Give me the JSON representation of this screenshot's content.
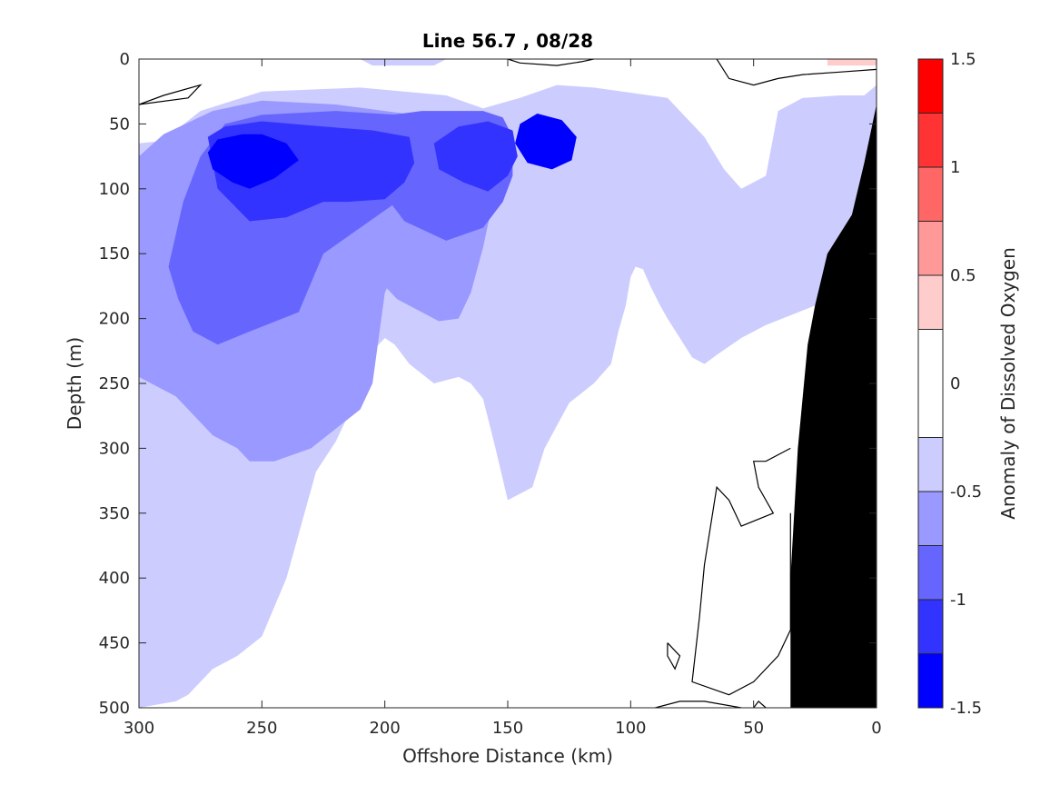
{
  "chart_data": {
    "type": "heatmap",
    "subtype": "filled-contour",
    "title": "Line 56.7 , 08/28",
    "xlabel": "Offshore Distance (km)",
    "ylabel": "Depth (m)",
    "xlim": [
      300,
      0
    ],
    "ylim": [
      0,
      500
    ],
    "x_reversed": true,
    "y_reversed": true,
    "x_ticks": [
      300,
      250,
      200,
      150,
      100,
      50,
      0
    ],
    "x_tick_labels": [
      "300",
      "250",
      "200",
      "150",
      "100",
      "50",
      "0"
    ],
    "y_ticks": [
      0,
      50,
      100,
      150,
      200,
      250,
      300,
      350,
      400,
      450,
      500
    ],
    "y_tick_labels": [
      "0",
      "50",
      "100",
      "150",
      "200",
      "250",
      "300",
      "350",
      "400",
      "450",
      "500"
    ],
    "colorbar": {
      "label": "Anomaly of Dissolved Oxygen",
      "range": [
        -1.5,
        1.5
      ],
      "ticks": [
        -1.5,
        -1,
        -0.5,
        0,
        0.5,
        1,
        1.5
      ],
      "tick_labels": [
        "-1.5",
        "-1",
        "-0.5",
        "0",
        "0.5",
        "1",
        "1.5"
      ],
      "levels": [
        -1.5,
        -1.25,
        -1.0,
        -0.75,
        -0.5,
        -0.25,
        0.25,
        0.5,
        0.75,
        1.0,
        1.25,
        1.5
      ],
      "level_colors": [
        "#0000ff",
        "#3333ff",
        "#6666ff",
        "#9999ff",
        "#ccccff",
        "#ffffff",
        "#ffcccc",
        "#ff9999",
        "#ff6666",
        "#ff3333",
        "#ff0000"
      ]
    },
    "regions": [
      {
        "name": "anomaly-below-minus-0.25",
        "level": -0.5,
        "color": "#ccccff",
        "polygons": [
          [
            [
              300,
              0
            ],
            [
              210,
              0
            ],
            [
              205,
              5
            ],
            [
              180,
              5
            ],
            [
              175,
              0
            ],
            [
              300,
              0
            ]
          ],
          [
            [
              300,
              65
            ],
            [
              290,
              63
            ],
            [
              285,
              55
            ],
            [
              275,
              40
            ],
            [
              250,
              25
            ],
            [
              210,
              22
            ],
            [
              175,
              28
            ],
            [
              160,
              38
            ],
            [
              145,
              30
            ],
            [
              130,
              20
            ],
            [
              115,
              22
            ],
            [
              85,
              30
            ],
            [
              70,
              60
            ],
            [
              62,
              85
            ],
            [
              55,
              100
            ],
            [
              45,
              90
            ],
            [
              42,
              60
            ],
            [
              40,
              40
            ],
            [
              30,
              30
            ],
            [
              15,
              28
            ],
            [
              5,
              28
            ],
            [
              0,
              20
            ],
            [
              0,
              190
            ],
            [
              25,
              190
            ],
            [
              45,
              205
            ],
            [
              55,
              215
            ],
            [
              65,
              228
            ],
            [
              70,
              235
            ],
            [
              75,
              230
            ],
            [
              80,
              215
            ],
            [
              85,
              200
            ],
            [
              88,
              190
            ],
            [
              92,
              175
            ],
            [
              95,
              162
            ],
            [
              98,
              160
            ],
            [
              100,
              168
            ],
            [
              102,
              190
            ],
            [
              105,
              210
            ],
            [
              108,
              235
            ],
            [
              115,
              250
            ],
            [
              125,
              265
            ],
            [
              135,
              300
            ],
            [
              140,
              330
            ],
            [
              150,
              340
            ],
            [
              155,
              300
            ],
            [
              160,
              262
            ],
            [
              165,
              250
            ],
            [
              170,
              245
            ],
            [
              180,
              250
            ],
            [
              190,
              235
            ],
            [
              196,
              220
            ],
            [
              200,
              215
            ],
            [
              205,
              225
            ],
            [
              210,
              250
            ],
            [
              215,
              275
            ],
            [
              220,
              295
            ],
            [
              228,
              318
            ],
            [
              240,
              400
            ],
            [
              250,
              445
            ],
            [
              260,
              460
            ],
            [
              270,
              470
            ],
            [
              275,
              480
            ],
            [
              280,
              490
            ],
            [
              285,
              495
            ],
            [
              300,
              500
            ],
            [
              300,
              65
            ]
          ]
        ]
      },
      {
        "name": "anomaly-below-minus-0.5",
        "level": -0.75,
        "color": "#9999ff",
        "polygons": [
          [
            [
              300,
              245
            ],
            [
              300,
              75
            ],
            [
              290,
              58
            ],
            [
              270,
              40
            ],
            [
              250,
              32
            ],
            [
              220,
              35
            ],
            [
              180,
              45
            ],
            [
              175,
              60
            ],
            [
              180,
              100
            ],
            [
              200,
              180
            ],
            [
              205,
              250
            ],
            [
              210,
              270
            ],
            [
              230,
              300
            ],
            [
              245,
              310
            ],
            [
              255,
              310
            ],
            [
              260,
              300
            ],
            [
              270,
              290
            ],
            [
              285,
              260
            ],
            [
              300,
              245
            ]
          ],
          [
            [
              155,
              60
            ],
            [
              155,
              100
            ],
            [
              160,
              145
            ],
            [
              165,
              180
            ],
            [
              170,
              200
            ],
            [
              178,
              202
            ],
            [
              195,
              185
            ],
            [
              205,
              165
            ],
            [
              218,
              135
            ],
            [
              220,
              115
            ],
            [
              222,
              110
            ],
            [
              205,
              115
            ],
            [
              195,
              110
            ],
            [
              185,
              90
            ],
            [
              178,
              75
            ],
            [
              170,
              45
            ],
            [
              160,
              40
            ],
            [
              155,
              60
            ]
          ]
        ]
      },
      {
        "name": "anomaly-below-minus-0.75",
        "level": -1.0,
        "color": "#6666ff",
        "polygons": [
          [
            [
              288,
              160
            ],
            [
              282,
              110
            ],
            [
              275,
              75
            ],
            [
              265,
              50
            ],
            [
              250,
              43
            ],
            [
              220,
              40
            ],
            [
              195,
              43
            ],
            [
              180,
              48
            ],
            [
              175,
              65
            ],
            [
              180,
              90
            ],
            [
              195,
              110
            ],
            [
              210,
              130
            ],
            [
              225,
              150
            ],
            [
              235,
              195
            ],
            [
              255,
              210
            ],
            [
              268,
              220
            ],
            [
              278,
              210
            ],
            [
              284,
              185
            ],
            [
              288,
              160
            ]
          ],
          [
            [
              152,
              45
            ],
            [
              148,
              60
            ],
            [
              148,
              90
            ],
            [
              152,
              110
            ],
            [
              160,
              130
            ],
            [
              175,
              140
            ],
            [
              192,
              125
            ],
            [
              206,
              90
            ],
            [
              215,
              60
            ],
            [
              205,
              45
            ],
            [
              185,
              40
            ],
            [
              160,
              40
            ],
            [
              152,
              45
            ]
          ]
        ]
      },
      {
        "name": "anomaly-below-minus-1.0",
        "level": -1.25,
        "color": "#3333ff",
        "polygons": [
          [
            [
              272,
              60
            ],
            [
              268,
              100
            ],
            [
              255,
              125
            ],
            [
              240,
              122
            ],
            [
              225,
              110
            ],
            [
              215,
              110
            ],
            [
              200,
              108
            ],
            [
              192,
              95
            ],
            [
              188,
              80
            ],
            [
              190,
              60
            ],
            [
              205,
              55
            ],
            [
              225,
              52
            ],
            [
              250,
              48
            ],
            [
              265,
              52
            ],
            [
              272,
              60
            ]
          ],
          [
            [
              148,
              55
            ],
            [
              146,
              75
            ],
            [
              150,
              90
            ],
            [
              158,
              102
            ],
            [
              168,
              95
            ],
            [
              178,
              85
            ],
            [
              180,
              65
            ],
            [
              170,
              52
            ],
            [
              158,
              48
            ],
            [
              148,
              55
            ]
          ]
        ]
      },
      {
        "name": "anomaly-below-minus-1.25",
        "level": -1.5,
        "color": "#0000ff",
        "polygons": [
          [
            [
              258,
              58
            ],
            [
              268,
              62
            ],
            [
              272,
              72
            ],
            [
              270,
              85
            ],
            [
              262,
              95
            ],
            [
              255,
              100
            ],
            [
              245,
              92
            ],
            [
              235,
              78
            ],
            [
              240,
              65
            ],
            [
              250,
              58
            ],
            [
              258,
              58
            ]
          ],
          [
            [
              138,
              42
            ],
            [
              145,
              50
            ],
            [
              147,
              65
            ],
            [
              142,
              80
            ],
            [
              132,
              85
            ],
            [
              124,
              78
            ],
            [
              122,
              60
            ],
            [
              128,
              47
            ],
            [
              138,
              42
            ]
          ]
        ]
      },
      {
        "name": "anomaly-above-0.25",
        "level": 0.5,
        "color": "#ffcccc",
        "polygons": [
          [
            [
              20,
              0
            ],
            [
              0,
              0
            ],
            [
              0,
              5
            ],
            [
              20,
              5
            ],
            [
              20,
              0
            ]
          ]
        ]
      },
      {
        "name": "land-mask",
        "level": null,
        "color": "#000000",
        "polygons": [
          [
            [
              0,
              35
            ],
            [
              5,
              80
            ],
            [
              10,
              120
            ],
            [
              20,
              150
            ],
            [
              25,
              190
            ],
            [
              28,
              220
            ],
            [
              32,
              300
            ],
            [
              35,
              400
            ],
            [
              35,
              500
            ],
            [
              0,
              500
            ],
            [
              0,
              35
            ]
          ]
        ]
      }
    ],
    "zero_contours": [
      [
        [
          300,
          35
        ],
        [
          290,
          28
        ],
        [
          275,
          20
        ],
        [
          280,
          30
        ],
        [
          300,
          35
        ]
      ],
      [
        [
          150,
          0
        ],
        [
          145,
          3
        ],
        [
          130,
          5
        ],
        [
          120,
          2
        ],
        [
          115,
          0
        ]
      ],
      [
        [
          65,
          0
        ],
        [
          60,
          15
        ],
        [
          50,
          20
        ],
        [
          40,
          15
        ],
        [
          30,
          12
        ],
        [
          15,
          10
        ],
        [
          0,
          8
        ]
      ],
      [
        [
          35,
          300
        ],
        [
          45,
          310
        ],
        [
          50,
          310
        ],
        [
          48,
          330
        ],
        [
          42,
          350
        ],
        [
          55,
          360
        ],
        [
          60,
          340
        ],
        [
          65,
          330
        ],
        [
          70,
          390
        ],
        [
          72,
          430
        ],
        [
          75,
          480
        ],
        [
          60,
          490
        ],
        [
          50,
          480
        ],
        [
          40,
          460
        ],
        [
          35,
          440
        ],
        [
          35,
          350
        ]
      ],
      [
        [
          85,
          450
        ],
        [
          80,
          460
        ],
        [
          82,
          470
        ],
        [
          85,
          460
        ],
        [
          85,
          450
        ]
      ],
      [
        [
          90,
          500
        ],
        [
          80,
          495
        ],
        [
          70,
          495
        ],
        [
          55,
          500
        ]
      ],
      [
        [
          50,
          500
        ],
        [
          48,
          495
        ],
        [
          45,
          500
        ]
      ]
    ]
  }
}
